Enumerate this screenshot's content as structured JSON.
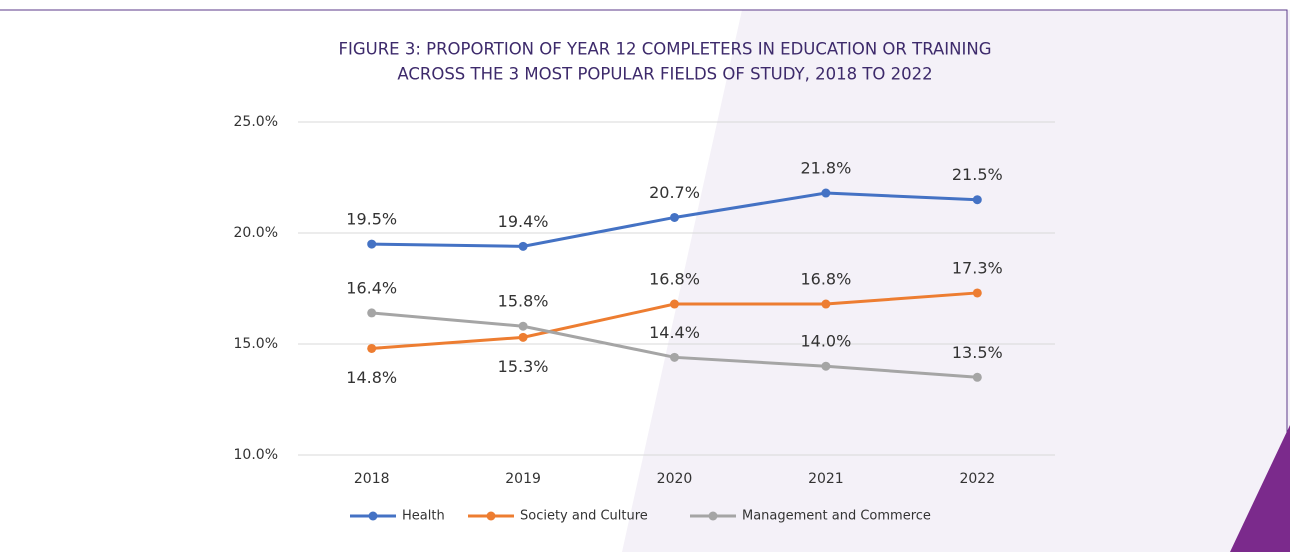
{
  "chart_data": {
    "type": "line",
    "title": [
      "FIGURE 3: PROPORTION OF YEAR 12 COMPLETERS IN EDUCATION OR TRAINING",
      "ACROSS THE 3 MOST POPULAR FIELDS OF STUDY, 2018 TO 2022"
    ],
    "categories": [
      "2018",
      "2019",
      "2020",
      "2021",
      "2022"
    ],
    "series": [
      {
        "name": "Health",
        "color": "#4472c4",
        "values": [
          19.5,
          19.4,
          20.7,
          21.8,
          21.5
        ],
        "value_labels": [
          "19.5%",
          "19.4%",
          "20.7%",
          "21.8%",
          "21.5%"
        ]
      },
      {
        "name": "Society and Culture",
        "color": "#ed7d31",
        "values": [
          14.8,
          15.3,
          16.8,
          16.8,
          17.3
        ],
        "value_labels": [
          "14.8%",
          "15.3%",
          "16.8%",
          "16.8%",
          "17.3%"
        ]
      },
      {
        "name": "Management and Commerce",
        "color": "#a5a5a5",
        "values": [
          16.4,
          15.8,
          14.4,
          14.0,
          13.5
        ],
        "value_labels": [
          "16.4%",
          "15.8%",
          "14.4%",
          "14.0%",
          "13.5%"
        ]
      }
    ],
    "ylim": [
      10,
      25
    ],
    "yticks": [
      {
        "value": 10,
        "label": "10.0%"
      },
      {
        "value": 15,
        "label": "15.0%"
      },
      {
        "value": 20,
        "label": "20.0%"
      },
      {
        "value": 25,
        "label": "25.0%"
      }
    ],
    "grid": true,
    "legend": "bottom"
  }
}
